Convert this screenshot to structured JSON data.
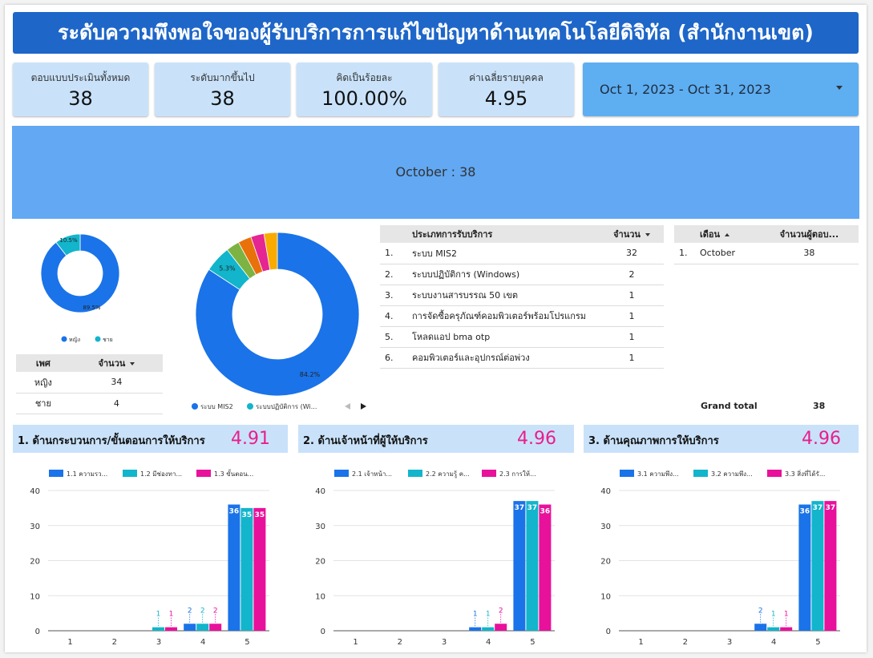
{
  "header": {
    "title": "ระดับความพึงพอใจของผู้รับบริการการแก้ไขปัญหาด้านเทคโนโลยีดิจิทัล (สำนักงานเขต)"
  },
  "kpis": [
    {
      "label": "ตอบแบบประเมินทั้งหมด",
      "value": "38"
    },
    {
      "label": "ระดับมากขึ้นไป",
      "value": "38"
    },
    {
      "label": "คิดเป็นร้อยละ",
      "value": "100.00%"
    },
    {
      "label": "ค่าเฉลี่ยรายบุคคล",
      "value": "4.95"
    }
  ],
  "date_range": {
    "value": "Oct 1, 2023 - Oct 31, 2023"
  },
  "month_band": {
    "text": "October : 38"
  },
  "gender_donut": {
    "slices": [
      {
        "name": "หญิง",
        "value": 34,
        "pct_label": "89.5%",
        "color": "#1a73e8"
      },
      {
        "name": "ชาย",
        "value": 4,
        "pct_label": "10.5%",
        "color": "#12b5cb"
      }
    ]
  },
  "gender_table": {
    "headers": [
      "เพศ",
      "จำนวน"
    ],
    "rows": [
      [
        "หญิง",
        "34"
      ],
      [
        "ชาย",
        "4"
      ]
    ]
  },
  "service_donut": {
    "slices": [
      {
        "name": "ระบบ MIS2",
        "value": 32,
        "pct_label": "84.2%",
        "color": "#1a73e8"
      },
      {
        "name": "ระบบปฏิบัติการ (Wi...",
        "value": 2,
        "pct_label": "5.3%",
        "color": "#12b5cb"
      },
      {
        "name": "",
        "value": 1,
        "pct_label": "",
        "color": "#7cb342"
      },
      {
        "name": "",
        "value": 1,
        "pct_label": "",
        "color": "#e8710a"
      },
      {
        "name": "",
        "value": 1,
        "pct_label": "",
        "color": "#e52592"
      },
      {
        "name": "",
        "value": 1,
        "pct_label": "",
        "color": "#f9ab00"
      }
    ]
  },
  "service_table": {
    "headers": [
      "ประเภทการรับบริการ",
      "จำนวน"
    ],
    "rows": [
      [
        "1.",
        "ระบบ MIS2",
        "32"
      ],
      [
        "2.",
        "ระบบปฏิบัติการ (Windows)",
        "2"
      ],
      [
        "3.",
        "ระบบงานสารบรรณ 50 เขต",
        "1"
      ],
      [
        "4.",
        "การจัดซื้อครุภัณฑ์คอมพิวเตอร์พร้อมโปรแกรม",
        "1"
      ],
      [
        "5.",
        "โหลดแอป bma otp",
        "1"
      ],
      [
        "6.",
        "คอมพิวเตอร์และอุปกรณ์ต่อพ่วง",
        "1"
      ]
    ]
  },
  "month_table": {
    "headers": [
      "เดือน",
      "จำนวนผู้ตอบ..."
    ],
    "rows": [
      [
        "1.",
        "October",
        "38"
      ]
    ],
    "grand_total_label": "Grand total",
    "grand_total_value": "38"
  },
  "sections": [
    {
      "title": "1. ด้านกระบวนการ/ขั้นตอนการให้บริการ",
      "score": "4.91"
    },
    {
      "title": "2. ด้านเจ้าหน้าที่ผู้ให้บริการ",
      "score": "4.96"
    },
    {
      "title": "3. ด้านคุณภาพการให้บริการ",
      "score": "4.96"
    }
  ],
  "chart_data": [
    {
      "type": "bar",
      "categories": [
        "1",
        "2",
        "3",
        "4",
        "5"
      ],
      "ylim": [
        0,
        40
      ],
      "yticks": [
        0,
        10,
        20,
        30,
        40
      ],
      "series": [
        {
          "name": "1.1 ความรว...",
          "color": "#1a73e8",
          "values": [
            0,
            0,
            0,
            2,
            36
          ]
        },
        {
          "name": "1.2 มีช่องทา...",
          "color": "#12b5cb",
          "values": [
            0,
            0,
            1,
            2,
            35
          ]
        },
        {
          "name": "1.3 ขั้นตอน...",
          "color": "#e8119b",
          "values": [
            0,
            0,
            1,
            2,
            35
          ]
        }
      ]
    },
    {
      "type": "bar",
      "categories": [
        "1",
        "2",
        "3",
        "4",
        "5"
      ],
      "ylim": [
        0,
        40
      ],
      "yticks": [
        0,
        10,
        20,
        30,
        40
      ],
      "series": [
        {
          "name": "2.1 เจ้าหน้า...",
          "color": "#1a73e8",
          "values": [
            0,
            0,
            0,
            1,
            37
          ]
        },
        {
          "name": "2.2 ความรู้ ค...",
          "color": "#12b5cb",
          "values": [
            0,
            0,
            0,
            1,
            37
          ]
        },
        {
          "name": "2.3 การให้...",
          "color": "#e8119b",
          "values": [
            0,
            0,
            0,
            2,
            36
          ]
        }
      ]
    },
    {
      "type": "bar",
      "categories": [
        "1",
        "2",
        "3",
        "4",
        "5"
      ],
      "ylim": [
        0,
        40
      ],
      "yticks": [
        0,
        10,
        20,
        30,
        40
      ],
      "series": [
        {
          "name": "3.1 ความพึง...",
          "color": "#1a73e8",
          "values": [
            0,
            0,
            0,
            2,
            36
          ]
        },
        {
          "name": "3.2 ความพึง...",
          "color": "#12b5cb",
          "values": [
            0,
            0,
            0,
            1,
            37
          ]
        },
        {
          "name": "3.3 สิ่งที่ได้รั...",
          "color": "#e8119b",
          "values": [
            0,
            0,
            0,
            1,
            37
          ]
        }
      ]
    }
  ]
}
